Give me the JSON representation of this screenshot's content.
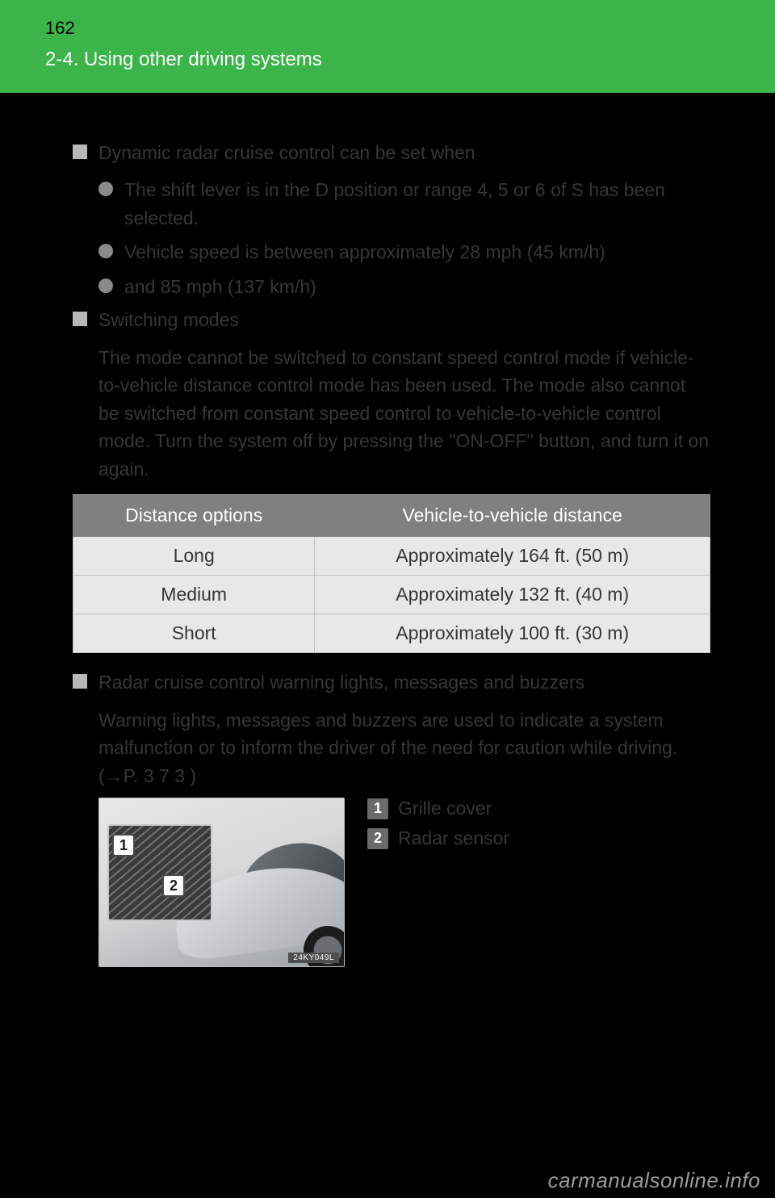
{
  "header": {
    "page_number": "162",
    "section": "2-4. Using other driving systems",
    "band_color": "#3bb54a"
  },
  "blocks": [
    {
      "heading": "Dynamic radar cruise control can be set when",
      "bullets": [
        "The shift lever is in the D position or range 4, 5 or 6 of S has been selected.",
        "Vehicle speed is between approximately 28 mph (45 km/h)",
        "and 85 mph (137 km/h)"
      ]
    },
    {
      "heading": "Switching modes",
      "paras": [
        "The mode cannot be switched to constant speed control mode if vehicle-to-vehicle distance control mode has been used. The mode also cannot be switched from constant speed control to vehicle-to-vehicle control mode. Turn the system off by pressing the \"ON-OFF\" button, and turn it on again."
      ]
    }
  ],
  "distance_table": {
    "columns": [
      "Distance options",
      "Vehicle-to-vehicle distance"
    ],
    "rows": [
      [
        "Long",
        "Approximately 164 ft. (50 m)"
      ],
      [
        "Medium",
        "Approximately 132 ft. (40 m)"
      ],
      [
        "Short",
        "Approximately 100 ft. (30 m)"
      ]
    ],
    "header_bg": "#808080",
    "header_fg": "#ffffff",
    "cell_bg": "#e8e8e8"
  },
  "radar_block": {
    "heading": "Radar cruise control warning lights, messages and buzzers",
    "paras": [
      "Warning lights, messages and buzzers are used to indicate a system malfunction or to inform the driver of the need for caution while driving. (→P. 3 7 3 )"
    ]
  },
  "sensor": {
    "image_caption": "24KY049L",
    "callouts": [
      {
        "num": "1",
        "label": "Grille cover"
      },
      {
        "num": "2",
        "label": "Radar sensor"
      }
    ]
  },
  "watermark": "carmanualsonline.info"
}
